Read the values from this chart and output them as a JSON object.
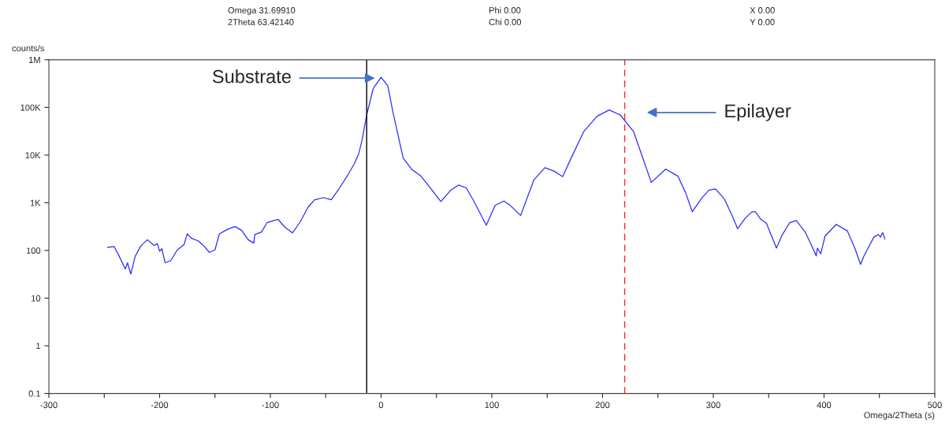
{
  "chart_data": {
    "type": "line",
    "xlabel": "Omega/2Theta (s)",
    "ylabel": "counts/s",
    "annotations": [
      "Omega 31.69910",
      "2Theta 63.42140",
      "Phi 0.00",
      "Chi 0.00",
      "X 0.00",
      "Y 0.00",
      "Substrate",
      "Epilayer"
    ],
    "series": [
      {
        "color": "#2b2bff",
        "x": [
          -247,
          -241,
          -237,
          -231,
          -229,
          -226,
          -222,
          -217,
          -211,
          -205,
          -202,
          -200,
          -198,
          -195,
          -190,
          -184,
          -178,
          -175,
          -171,
          -165,
          -160,
          -155,
          -150,
          -146,
          -139,
          -132,
          -126,
          -120,
          -115,
          -114,
          -108,
          -103,
          -97,
          -93,
          -87,
          -80,
          -73,
          -66,
          -60,
          -52,
          -45,
          -38,
          -30,
          -24,
          -20,
          -17,
          -13,
          -7,
          0,
          6,
          11,
          20,
          28,
          36,
          46,
          54,
          63,
          70,
          77,
          84,
          95,
          103,
          111,
          117,
          126,
          138,
          148,
          156,
          164,
          171,
          183,
          195,
          206,
          216,
          228,
          236,
          244,
          257,
          268,
          275,
          281,
          289,
          296,
          302,
          310,
          317,
          322,
          329,
          335,
          338,
          343,
          348,
          357,
          362,
          369,
          375,
          383,
          388,
          393,
          394,
          397,
          401,
          411,
          421,
          428,
          433,
          436,
          441,
          445,
          449,
          451,
          453,
          455
        ],
        "values": [
          116,
          120,
          80,
          41,
          55,
          32,
          76,
          124,
          168,
          127,
          139,
          96,
          109,
          55,
          61,
          103,
          132,
          223,
          179,
          158,
          124,
          91,
          103,
          223,
          275,
          318,
          265,
          168,
          143,
          215,
          243,
          383,
          422,
          449,
          310,
          234,
          397,
          802,
          1160,
          1280,
          1160,
          1960,
          3850,
          6700,
          11000,
          21600,
          69500,
          253000,
          428000,
          285000,
          73800,
          8590,
          4930,
          3630,
          1840,
          1060,
          1840,
          2360,
          2040,
          1060,
          338,
          881,
          1090,
          863,
          540,
          3020,
          5460,
          4640,
          3540,
          8060,
          31200,
          65300,
          88700,
          69500,
          31200,
          9140,
          2670,
          5070,
          3630,
          1630,
          649,
          1200,
          1840,
          1960,
          1200,
          540,
          285,
          478,
          649,
          649,
          449,
          373,
          112,
          207,
          383,
          422,
          243,
          139,
          77,
          112,
          85,
          202,
          351,
          258,
          109,
          51,
          76,
          127,
          190,
          215,
          190,
          237,
          173
        ]
      }
    ],
    "log": "y",
    "xlim": [
      -300,
      500
    ],
    "ylim": [
      0.1,
      1000000
    ],
    "xticks": [
      -300,
      {
        "value": -250,
        "label": null
      },
      -200,
      {
        "value": -150,
        "label": null
      },
      -100,
      {
        "value": -50,
        "label": null
      },
      0,
      {
        "value": 50,
        "label": null
      },
      100,
      {
        "value": 150,
        "label": null
      },
      200,
      {
        "value": 250,
        "label": null
      },
      300,
      {
        "value": 350,
        "label": null
      },
      400,
      {
        "value": 450,
        "label": null
      },
      500
    ],
    "yticks": [
      0.1,
      1,
      10,
      100,
      {
        "value": 1000,
        "label": "1K"
      },
      {
        "value": 10000,
        "label": "10K"
      },
      {
        "value": 100000,
        "label": "100K"
      },
      {
        "value": 1000000,
        "label": "1M"
      }
    ],
    "ref_lines": [
      {
        "axis": "x",
        "value": -13,
        "color": "#000000",
        "line_style": "solid"
      },
      {
        "axis": "x",
        "value": 220,
        "color": "#ff2020",
        "line_style": "dashed"
      }
    ],
    "grid": false,
    "legend": false,
    "marker": "none",
    "line_style": "solid"
  }
}
